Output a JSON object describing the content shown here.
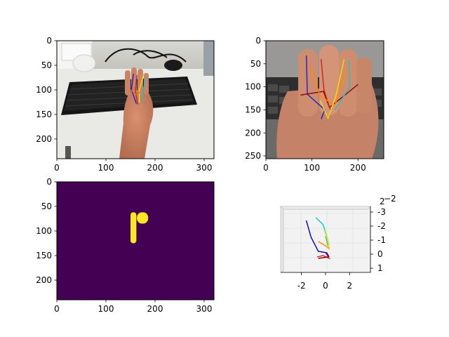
{
  "figure": {
    "background": "#ffffff"
  },
  "chart_data": [
    {
      "type": "image",
      "panel": "top-left",
      "content": "photo of a hand with a keyboard and mouse, with overlaid finger keypoint lines",
      "xlim": [
        0,
        320
      ],
      "ylim": [
        240,
        0
      ],
      "xticks": [
        0,
        100,
        200,
        300
      ],
      "yticks": [
        0,
        50,
        100,
        150,
        200
      ],
      "skeleton": [
        {
          "color": "#1f1fd0",
          "points": [
            [
              156,
              67
            ],
            [
              152,
              100
            ],
            [
              162,
              128
            ]
          ]
        },
        {
          "color": "#d41c1c",
          "points": [
            [
              163,
              70
            ],
            [
              160,
              102
            ],
            [
              165,
              130
            ]
          ]
        },
        {
          "color": "#f0e000",
          "points": [
            [
              177,
              68
            ],
            [
              168,
              100
            ],
            [
              168,
              126
            ]
          ]
        },
        {
          "color": "#20c0d0",
          "points": [
            [
              182,
              74
            ],
            [
              176,
              100
            ],
            [
              172,
              126
            ]
          ]
        },
        {
          "color": "#e07010",
          "points": [
            [
              148,
              98
            ],
            [
              162,
              110
            ],
            [
              170,
              104
            ]
          ]
        }
      ]
    },
    {
      "type": "image",
      "panel": "top-right",
      "content": "zoomed crop of the hand with overlaid finger keypoint lines",
      "xlim": [
        0,
        256
      ],
      "ylim": [
        256,
        0
      ],
      "xticks": [
        0,
        100,
        200
      ],
      "yticks": [
        0,
        50,
        100,
        150,
        200,
        250
      ],
      "skeleton": [
        {
          "color": "#1f1fd0",
          "points": [
            [
              88,
              32
            ],
            [
              90,
              116
            ],
            [
              128,
              150
            ],
            [
              120,
              170
            ]
          ]
        },
        {
          "color": "#8b0000",
          "points": [
            [
              75,
              118
            ],
            [
              125,
              110
            ],
            [
              138,
              145
            ],
            [
              200,
              95
            ]
          ]
        },
        {
          "color": "#d41c1c",
          "points": [
            [
              120,
              40
            ],
            [
              126,
              106
            ],
            [
              140,
              150
            ]
          ]
        },
        {
          "color": "#ff8800",
          "points": [
            [
              95,
              55
            ],
            [
              118,
              120
            ],
            [
              150,
              140
            ],
            [
              175,
              60
            ]
          ]
        },
        {
          "color": "#f0e000",
          "points": [
            [
              170,
              40
            ],
            [
              152,
              120
            ],
            [
              135,
              168
            ],
            [
              118,
              130
            ]
          ]
        },
        {
          "color": "#20c0d0",
          "points": [
            [
              180,
              42
            ],
            [
              182,
              100
            ],
            [
              150,
              150
            ]
          ]
        }
      ]
    },
    {
      "type": "heatmap",
      "panel": "bottom-left",
      "content": "binary segmentation mask",
      "xlim": [
        0,
        320
      ],
      "ylim": [
        240,
        0
      ],
      "xticks": [
        0,
        100,
        200,
        300
      ],
      "yticks": [
        0,
        50,
        100,
        150,
        200
      ],
      "background_color": "#440154",
      "mask_color": "#fde725",
      "blobs": [
        {
          "region": [
            150,
            62,
            162,
            125
          ]
        },
        {
          "region": [
            163,
            62,
            186,
            85
          ]
        }
      ]
    },
    {
      "type": "line3d",
      "panel": "bottom-right",
      "xticks": [
        -2,
        0,
        2
      ],
      "yticks": [
        -3,
        -2,
        -1,
        0,
        1
      ],
      "zticks": [
        2
      ],
      "ztick_extra": [
        "−2"
      ],
      "xlim": [
        -3.5,
        3.5
      ],
      "ylim": [
        -3.2,
        1.2
      ],
      "series": [
        {
          "color": "#0000cc",
          "points": [
            [
              -1.6,
              -2.4
            ],
            [
              -1.2,
              -1.2
            ],
            [
              -0.6,
              -0.2
            ],
            [
              0.1,
              -0.1
            ],
            [
              0.3,
              0.2
            ]
          ]
        },
        {
          "color": "#00ced1",
          "points": [
            [
              -0.8,
              -2.6
            ],
            [
              -0.2,
              -2.1
            ],
            [
              0.2,
              -1.0
            ],
            [
              0.3,
              -0.4
            ]
          ]
        },
        {
          "color": "#2ecc71",
          "points": [
            [
              0.0,
              -1.3
            ],
            [
              0.2,
              -0.6
            ]
          ]
        },
        {
          "color": "#f0e000",
          "points": [
            [
              -0.1,
              -1.7
            ],
            [
              0.2,
              -1.0
            ],
            [
              0.3,
              -0.3
            ]
          ]
        },
        {
          "color": "#ff8800",
          "points": [
            [
              -0.6,
              -0.9
            ],
            [
              0.0,
              -0.6
            ],
            [
              0.3,
              -0.4
            ]
          ]
        },
        {
          "color": "#d41c1c",
          "points": [
            [
              -0.7,
              0.2
            ],
            [
              -0.2,
              0.1
            ],
            [
              0.3,
              0.3
            ],
            [
              0.0,
              -0.1
            ]
          ]
        },
        {
          "color": "#8b0000",
          "points": [
            [
              -0.6,
              0.3
            ],
            [
              0.2,
              0.2
            ]
          ]
        }
      ]
    }
  ]
}
